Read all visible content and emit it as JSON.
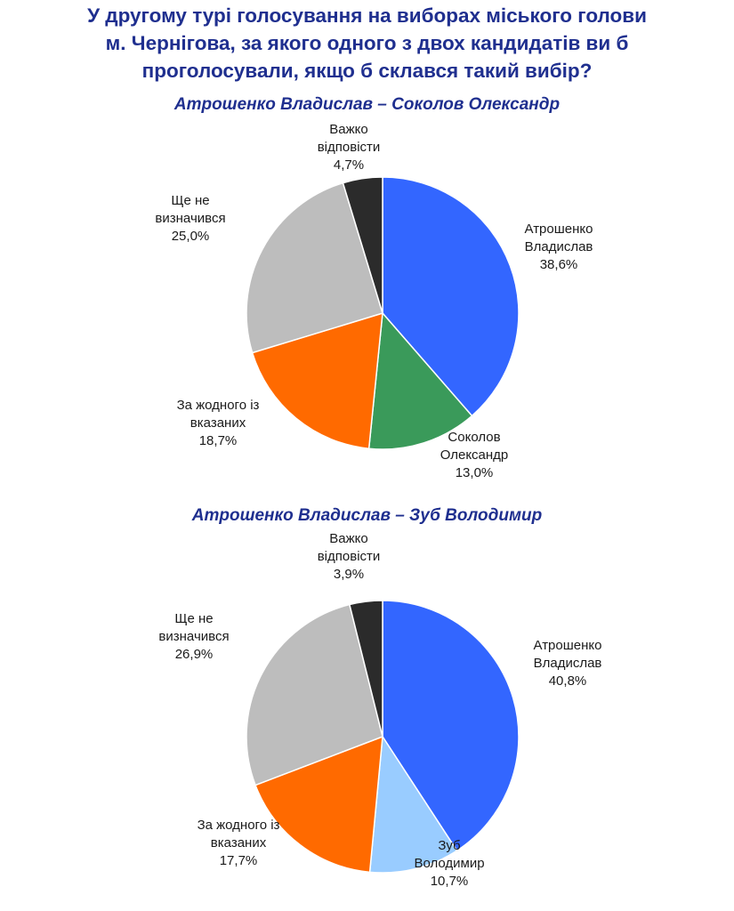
{
  "title_lines": [
    "У другому турі  голосування на виборах міського голови",
    "м. Чернігова, за якого одного з двох кандидатів ви б",
    "проголосували, якщо б склався такий вибір?"
  ],
  "chart_data": [
    {
      "type": "pie",
      "title": "Атрошенко Владислав – Соколов Олександр",
      "slices": [
        {
          "label": [
            "Атрошенко",
            "Владислав"
          ],
          "value": 38.6,
          "value_label": "38,6%",
          "color": "#3366ff"
        },
        {
          "label": [
            "Соколов",
            "Олександр"
          ],
          "value": 13.0,
          "value_label": "13,0%",
          "color": "#3a9a5a"
        },
        {
          "label": [
            "За жодного із",
            "вказаних"
          ],
          "value": 18.7,
          "value_label": "18,7%",
          "color": "#ff6a00"
        },
        {
          "label": [
            "Ще не",
            "визначився"
          ],
          "value": 25.0,
          "value_label": "25,0%",
          "color": "#bdbdbd"
        },
        {
          "label": [
            "Важко",
            "відповісти"
          ],
          "value": 4.7,
          "value_label": "4,7%",
          "color": "#2b2b2b"
        }
      ]
    },
    {
      "type": "pie",
      "title": "Атрошенко Владислав – Зуб Володимир",
      "slices": [
        {
          "label": [
            "Атрошенко",
            "Владислав"
          ],
          "value": 40.8,
          "value_label": "40,8%",
          "color": "#3366ff"
        },
        {
          "label": [
            "Зуб",
            "Володимир"
          ],
          "value": 10.7,
          "value_label": "10,7%",
          "color": "#99ccff"
        },
        {
          "label": [
            "За жодного із",
            "вказаних"
          ],
          "value": 17.7,
          "value_label": "17,7%",
          "color": "#ff6a00"
        },
        {
          "label": [
            "Ще не",
            "визначився"
          ],
          "value": 26.9,
          "value_label": "26,9%",
          "color": "#bdbdbd"
        },
        {
          "label": [
            "Важко",
            "відповісти"
          ],
          "value": 3.9,
          "value_label": "3,9%",
          "color": "#2b2b2b"
        }
      ]
    }
  ]
}
